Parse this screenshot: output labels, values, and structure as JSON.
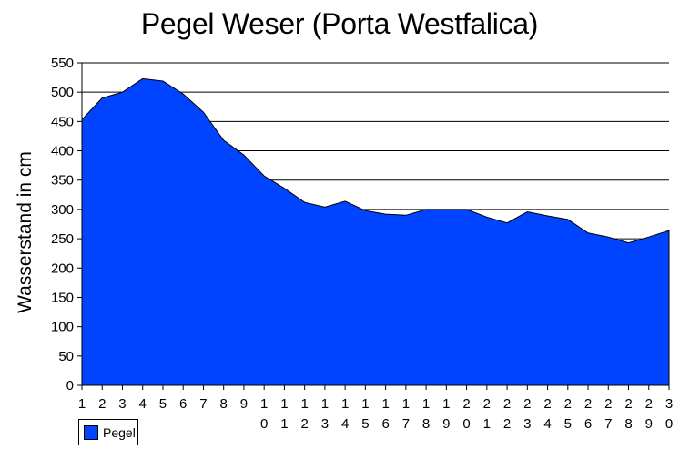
{
  "chart_data": {
    "type": "area",
    "title": "Pegel Weser (Porta Westfalica)",
    "xlabel": "",
    "ylabel": "Wasserstand in cm",
    "ylim": [
      0,
      550
    ],
    "yticks": [
      0,
      50,
      100,
      150,
      200,
      250,
      300,
      350,
      400,
      450,
      500,
      550
    ],
    "grid": "horizontal at 250-550",
    "legend_position": "bottom-left",
    "categories": [
      "1",
      "2",
      "3",
      "4",
      "5",
      "6",
      "7",
      "8",
      "9",
      "10",
      "11",
      "12",
      "13",
      "14",
      "15",
      "16",
      "17",
      "18",
      "19",
      "20",
      "21",
      "22",
      "23",
      "24",
      "25",
      "26",
      "27",
      "28",
      "29",
      "30"
    ],
    "series": [
      {
        "name": "Pegel",
        "color": "#0044ff",
        "values": [
          453,
          490,
          500,
          523,
          519,
          497,
          466,
          418,
          393,
          357,
          336,
          312,
          304,
          314,
          298,
          292,
          290,
          300,
          300,
          300,
          287,
          277,
          296,
          289,
          283,
          260,
          253,
          243,
          253,
          264
        ]
      }
    ]
  },
  "legend": {
    "label": "Pegel",
    "color": "#0044ff"
  }
}
